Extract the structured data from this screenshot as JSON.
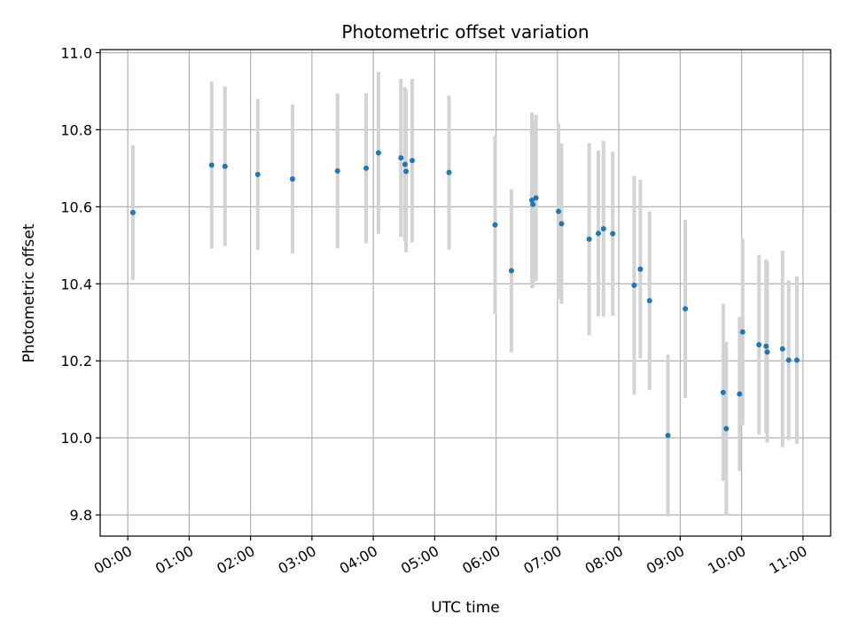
{
  "chart_data": {
    "type": "scatter",
    "title": "Photometric offset variation",
    "xlabel": "UTC time",
    "ylabel": "Photometric offset",
    "x_ticks": [
      "00:00",
      "01:00",
      "02:00",
      "03:00",
      "04:00",
      "05:00",
      "06:00",
      "07:00",
      "08:00",
      "09:00",
      "10:00",
      "11:00"
    ],
    "xlim": [
      "-00:27",
      "11:27"
    ],
    "y_ticks": [
      "9.8",
      "10.0",
      "10.2",
      "10.4",
      "10.6",
      "10.8",
      "11.0"
    ],
    "ylim": [
      9.745,
      11.008
    ],
    "grid": true,
    "colors": {
      "point": "#1f77b4",
      "errorbar": "#d3d3d3",
      "grid": "#b0b0b0"
    },
    "points": [
      {
        "x": "00:05",
        "y": 10.585,
        "err": 0.175
      },
      {
        "x": "01:22",
        "y": 10.708,
        "err": 0.217
      },
      {
        "x": "01:35",
        "y": 10.705,
        "err": 0.207
      },
      {
        "x": "02:07",
        "y": 10.684,
        "err": 0.196
      },
      {
        "x": "02:41",
        "y": 10.672,
        "err": 0.193
      },
      {
        "x": "03:25",
        "y": 10.693,
        "err": 0.201
      },
      {
        "x": "03:53",
        "y": 10.7,
        "err": 0.195
      },
      {
        "x": "04:05",
        "y": 10.74,
        "err": 0.21
      },
      {
        "x": "04:27",
        "y": 10.727,
        "err": 0.205
      },
      {
        "x": "04:31",
        "y": 10.71,
        "err": 0.2
      },
      {
        "x": "04:32",
        "y": 10.692,
        "err": 0.21
      },
      {
        "x": "04:38",
        "y": 10.72,
        "err": 0.212
      },
      {
        "x": "05:14",
        "y": 10.689,
        "err": 0.2
      },
      {
        "x": "05:59",
        "y": 10.553,
        "err": 0.232
      },
      {
        "x": "06:15",
        "y": 10.434,
        "err": 0.212
      },
      {
        "x": "06:35",
        "y": 10.617,
        "err": 0.228
      },
      {
        "x": "06:36",
        "y": 10.606,
        "err": 0.215
      },
      {
        "x": "06:39",
        "y": 10.623,
        "err": 0.216
      },
      {
        "x": "07:01",
        "y": 10.588,
        "err": 0.228
      },
      {
        "x": "07:04",
        "y": 10.556,
        "err": 0.208
      },
      {
        "x": "07:31",
        "y": 10.516,
        "err": 0.25
      },
      {
        "x": "07:40",
        "y": 10.531,
        "err": 0.215
      },
      {
        "x": "07:45",
        "y": 10.543,
        "err": 0.228
      },
      {
        "x": "07:54",
        "y": 10.53,
        "err": 0.213
      },
      {
        "x": "08:15",
        "y": 10.396,
        "err": 0.284
      },
      {
        "x": "08:21",
        "y": 10.438,
        "err": 0.232
      },
      {
        "x": "08:30",
        "y": 10.356,
        "err": 0.232
      },
      {
        "x": "08:48",
        "y": 10.006,
        "err": 0.21
      },
      {
        "x": "09:05",
        "y": 10.335,
        "err": 0.231
      },
      {
        "x": "09:42",
        "y": 10.118,
        "err": 0.23
      },
      {
        "x": "09:45",
        "y": 10.024,
        "err": 0.225
      },
      {
        "x": "09:58",
        "y": 10.114,
        "err": 0.2
      },
      {
        "x": "10:01",
        "y": 10.275,
        "err": 0.242
      },
      {
        "x": "10:17",
        "y": 10.242,
        "err": 0.233
      },
      {
        "x": "10:24",
        "y": 10.238,
        "err": 0.225
      },
      {
        "x": "10:25",
        "y": 10.223,
        "err": 0.235
      },
      {
        "x": "10:40",
        "y": 10.231,
        "err": 0.255
      },
      {
        "x": "10:46",
        "y": 10.202,
        "err": 0.207
      },
      {
        "x": "10:54",
        "y": 10.202,
        "err": 0.217
      }
    ]
  }
}
